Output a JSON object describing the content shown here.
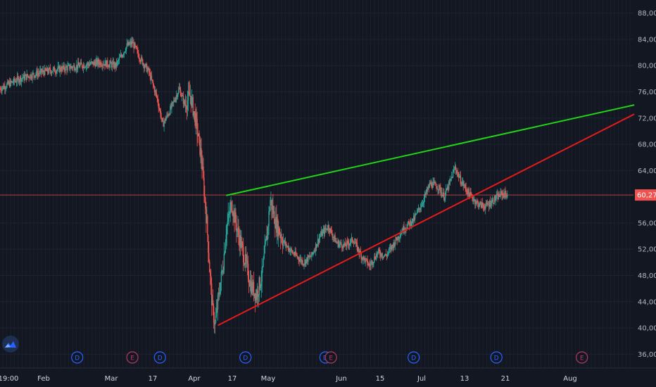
{
  "colors": {
    "background": "#131722",
    "grid": "#1e2331",
    "up": "#26a69a",
    "down": "#ef5350",
    "resistance_line": "#22d317",
    "support_line": "#e31b1b",
    "price_line": "#ef5350",
    "dividend": "#2962ff",
    "earnings": "#b33a5f"
  },
  "price_axis": {
    "ticks": [
      "88,00",
      "84,00",
      "80,00",
      "76,00",
      "72,00",
      "68,00",
      "64,00",
      "60,27",
      "56,00",
      "52,00",
      "48,00",
      "44,00",
      "40,00",
      "36,00"
    ]
  },
  "time_axis": {
    "labels": [
      "19:00",
      "Feb",
      "Mar",
      "17",
      "Apr",
      "17",
      "May",
      "Jun",
      "15",
      "Jul",
      "13",
      "21",
      "Aug"
    ]
  },
  "current_price": {
    "label": "60,27",
    "value": 60.27
  },
  "event_markers": [
    {
      "type": "dividend",
      "letter": "D",
      "date": "2020-01-31"
    },
    {
      "type": "earnings",
      "letter": "E",
      "date": "2020-02-20"
    },
    {
      "type": "dividend",
      "letter": "D",
      "date": "2020-03-01"
    },
    {
      "type": "dividend",
      "letter": "D",
      "date": "2020-04-01"
    },
    {
      "type": "dividend",
      "letter": "D",
      "date": "2020-04-30"
    },
    {
      "type": "earnings",
      "letter": "E",
      "date": "2020-05-02"
    },
    {
      "type": "dividend",
      "letter": "D",
      "date": "2020-06-01"
    },
    {
      "type": "dividend",
      "letter": "D",
      "date": "2020-07-01"
    },
    {
      "type": "earnings",
      "letter": "E",
      "date": "2020-08-01"
    }
  ],
  "logo_icon": "tradingview-logo-icon",
  "chart_data": {
    "type": "candlestick",
    "title": "",
    "xlabel": "",
    "ylabel": "",
    "ylim": [
      34,
      90
    ],
    "x_range": [
      "2020-01-03",
      "2020-08-22"
    ],
    "grid": true,
    "legend": "none",
    "trendlines": [
      {
        "kind": "resistance",
        "start": [
          "2020-03-25",
          60.2
        ],
        "end": [
          "2020-08-20",
          74.0
        ]
      },
      {
        "kind": "support",
        "start": [
          "2020-03-22",
          40.4
        ],
        "end": [
          "2020-08-20",
          72.6
        ]
      }
    ],
    "series_anchors": [
      [
        "2020-01-03",
        76.5
      ],
      [
        "2020-01-10",
        78.0
      ],
      [
        "2020-01-18",
        79.0
      ],
      [
        "2020-01-25",
        79.5
      ],
      [
        "2020-02-01",
        80.0
      ],
      [
        "2020-02-08",
        80.5
      ],
      [
        "2020-02-14",
        80.0
      ],
      [
        "2020-02-18",
        83.0
      ],
      [
        "2020-02-20",
        83.5
      ],
      [
        "2020-02-23",
        81.0
      ],
      [
        "2020-02-26",
        79.0
      ],
      [
        "2020-02-29",
        75.0
      ],
      [
        "2020-03-02",
        71.0
      ],
      [
        "2020-03-05",
        73.5
      ],
      [
        "2020-03-08",
        76.5
      ],
      [
        "2020-03-10",
        74.0
      ],
      [
        "2020-03-12",
        75.5
      ],
      [
        "2020-03-14",
        71.5
      ],
      [
        "2020-03-16",
        66.0
      ],
      [
        "2020-03-17",
        61.0
      ],
      [
        "2020-03-18",
        56.0
      ],
      [
        "2020-03-19",
        49.0
      ],
      [
        "2020-03-20",
        43.0
      ],
      [
        "2020-03-21",
        40.5
      ],
      [
        "2020-03-22",
        44.0
      ],
      [
        "2020-03-24",
        50.0
      ],
      [
        "2020-03-25",
        55.0
      ],
      [
        "2020-03-27",
        59.0
      ],
      [
        "2020-03-29",
        55.0
      ],
      [
        "2020-04-01",
        50.0
      ],
      [
        "2020-04-03",
        46.5
      ],
      [
        "2020-04-05",
        45.0
      ],
      [
        "2020-04-07",
        48.0
      ],
      [
        "2020-04-09",
        55.0
      ],
      [
        "2020-04-10",
        59.5
      ],
      [
        "2020-04-12",
        56.0
      ],
      [
        "2020-04-15",
        53.0
      ],
      [
        "2020-04-18",
        51.5
      ],
      [
        "2020-04-22",
        50.0
      ],
      [
        "2020-04-25",
        51.0
      ],
      [
        "2020-04-28",
        54.0
      ],
      [
        "2020-05-01",
        55.5
      ],
      [
        "2020-05-04",
        53.0
      ],
      [
        "2020-05-07",
        52.5
      ],
      [
        "2020-05-10",
        53.5
      ],
      [
        "2020-05-13",
        51.0
      ],
      [
        "2020-05-16",
        49.5
      ],
      [
        "2020-05-19",
        51.5
      ],
      [
        "2020-05-22",
        51.0
      ],
      [
        "2020-05-25",
        53.0
      ],
      [
        "2020-05-28",
        55.0
      ],
      [
        "2020-06-01",
        56.5
      ],
      [
        "2020-06-04",
        59.0
      ],
      [
        "2020-06-07",
        62.0
      ],
      [
        "2020-06-10",
        61.5
      ],
      [
        "2020-06-12",
        60.0
      ],
      [
        "2020-06-14",
        62.0
      ],
      [
        "2020-06-16",
        64.5
      ],
      [
        "2020-06-18",
        62.5
      ],
      [
        "2020-06-21",
        60.5
      ],
      [
        "2020-06-24",
        59.0
      ],
      [
        "2020-06-27",
        58.5
      ],
      [
        "2020-06-30",
        59.5
      ],
      [
        "2020-07-03",
        60.5
      ],
      [
        "2020-07-05",
        60.27
      ]
    ]
  }
}
